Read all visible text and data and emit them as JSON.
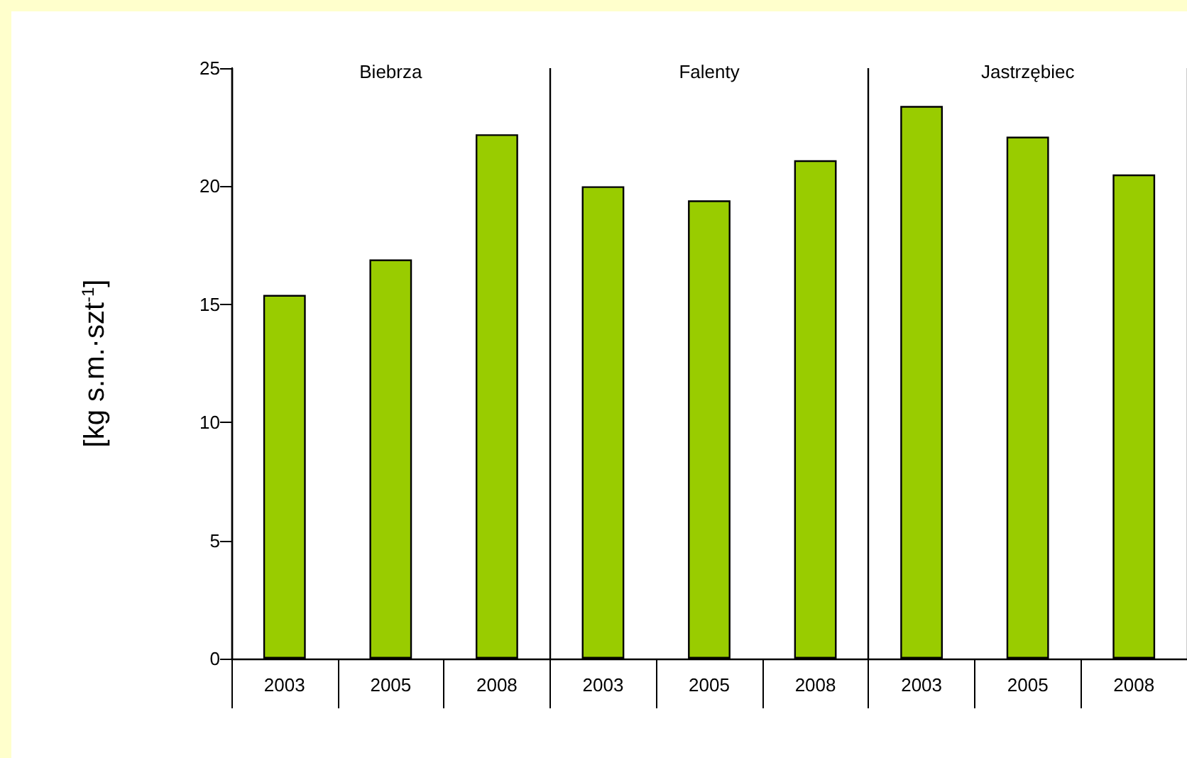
{
  "chart_data": {
    "type": "bar",
    "ylabel": "[kg s.m.·szt$^{-1}$]",
    "categories": [
      "2003",
      "2005",
      "2008",
      "2003",
      "2005",
      "2008",
      "2003",
      "2005",
      "2008"
    ],
    "values": [
      15.4,
      16.9,
      22.2,
      20.0,
      19.4,
      21.1,
      23.4,
      22.1,
      20.5
    ],
    "color": "#99cc00",
    "annotations": [
      "Biebrza",
      "Falenty",
      "Jastrzębiec"
    ],
    "ylim": [
      0,
      25
    ],
    "yticks": [
      0,
      5,
      10,
      15,
      20,
      25
    ],
    "grid": false
  }
}
